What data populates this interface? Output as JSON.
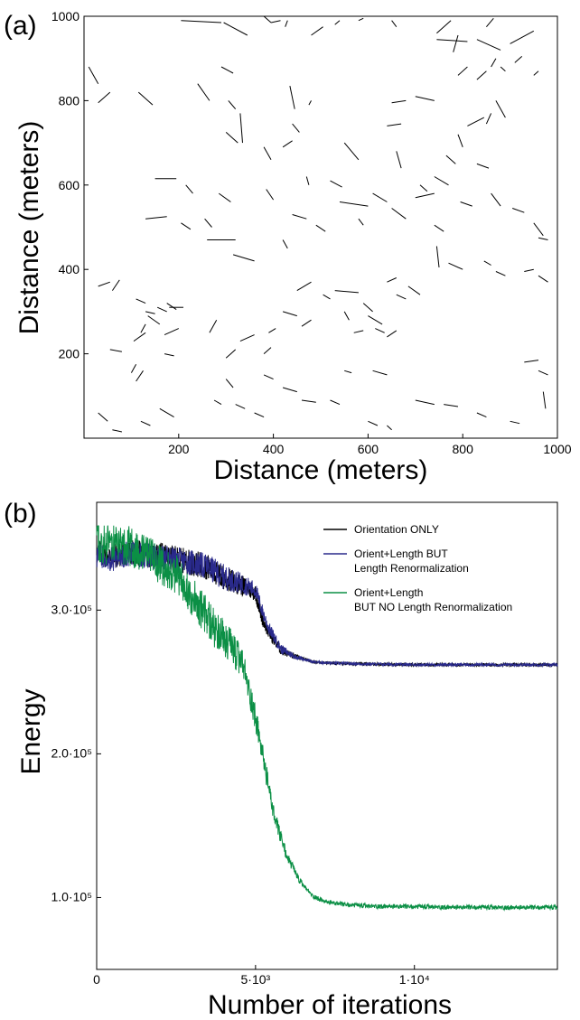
{
  "chart_data": [
    {
      "type": "scatter",
      "mark": "line-segments",
      "panel_label": "(a)",
      "xlabel": "Distance (meters)",
      "ylabel": "Distance (meters)",
      "xlim": [
        0,
        1000
      ],
      "ylim": [
        0,
        1000
      ],
      "x_ticks": [
        "200",
        "400",
        "600",
        "800",
        "1000"
      ],
      "y_ticks": [
        "200",
        "400",
        "600",
        "800",
        "1000"
      ],
      "y_top_label": "1000",
      "grid": false,
      "segments": [
        [
          10,
          880,
          30,
          840
        ],
        [
          30,
          795,
          55,
          820
        ],
        [
          115,
          820,
          145,
          790
        ],
        [
          205,
          990,
          290,
          985
        ],
        [
          295,
          985,
          345,
          955
        ],
        [
          380,
          1000,
          395,
          985
        ],
        [
          425,
          975,
          430,
          990
        ],
        [
          395,
          985,
          415,
          990
        ],
        [
          480,
          955,
          505,
          975
        ],
        [
          530,
          980,
          540,
          990
        ],
        [
          580,
          990,
          590,
          995
        ],
        [
          660,
          975,
          650,
          990
        ],
        [
          745,
          960,
          775,
          990
        ],
        [
          780,
          915,
          790,
          955
        ],
        [
          745,
          945,
          810,
          940
        ],
        [
          830,
          945,
          880,
          920
        ],
        [
          850,
          975,
          865,
          995
        ],
        [
          900,
          935,
          950,
          965
        ],
        [
          925,
          905,
          910,
          890
        ],
        [
          860,
          880,
          870,
          900
        ],
        [
          880,
          880,
          890,
          870
        ],
        [
          790,
          860,
          810,
          880
        ],
        [
          830,
          850,
          850,
          870
        ],
        [
          950,
          860,
          960,
          870
        ],
        [
          290,
          880,
          315,
          865
        ],
        [
          240,
          840,
          265,
          800
        ],
        [
          305,
          800,
          320,
          780
        ],
        [
          435,
          835,
          445,
          780
        ],
        [
          480,
          800,
          475,
          790
        ],
        [
          650,
          795,
          680,
          800
        ],
        [
          700,
          810,
          740,
          800
        ],
        [
          870,
          800,
          890,
          760
        ],
        [
          850,
          745,
          860,
          770
        ],
        [
          810,
          740,
          845,
          760
        ],
        [
          640,
          740,
          670,
          745
        ],
        [
          440,
          745,
          455,
          725
        ],
        [
          300,
          725,
          325,
          700
        ],
        [
          330,
          770,
          335,
          700
        ],
        [
          440,
          705,
          420,
          690
        ],
        [
          380,
          690,
          395,
          660
        ],
        [
          550,
          700,
          580,
          660
        ],
        [
          660,
          680,
          670,
          640
        ],
        [
          790,
          720,
          800,
          690
        ],
        [
          765,
          670,
          785,
          650
        ],
        [
          830,
          650,
          855,
          640
        ],
        [
          740,
          620,
          770,
          600
        ],
        [
          710,
          600,
          725,
          585
        ],
        [
          700,
          570,
          740,
          580
        ],
        [
          610,
          580,
          640,
          560
        ],
        [
          540,
          560,
          600,
          550
        ],
        [
          520,
          610,
          545,
          595
        ],
        [
          470,
          620,
          475,
          600
        ],
        [
          385,
          590,
          400,
          565
        ],
        [
          285,
          580,
          310,
          560
        ],
        [
          215,
          600,
          230,
          580
        ],
        [
          150,
          615,
          195,
          615
        ],
        [
          130,
          520,
          175,
          525
        ],
        [
          205,
          510,
          225,
          495
        ],
        [
          255,
          520,
          270,
          500
        ],
        [
          260,
          470,
          320,
          470
        ],
        [
          315,
          435,
          360,
          420
        ],
        [
          420,
          470,
          430,
          450
        ],
        [
          440,
          530,
          470,
          520
        ],
        [
          490,
          505,
          510,
          490
        ],
        [
          580,
          520,
          590,
          505
        ],
        [
          650,
          545,
          680,
          520
        ],
        [
          740,
          505,
          760,
          490
        ],
        [
          795,
          560,
          820,
          550
        ],
        [
          860,
          580,
          880,
          550
        ],
        [
          905,
          545,
          930,
          535
        ],
        [
          950,
          510,
          970,
          480
        ],
        [
          960,
          475,
          980,
          470
        ],
        [
          745,
          455,
          750,
          405
        ],
        [
          770,
          415,
          800,
          400
        ],
        [
          660,
          380,
          640,
          370
        ],
        [
          660,
          340,
          680,
          330
        ],
        [
          685,
          360,
          710,
          340
        ],
        [
          845,
          420,
          860,
          410
        ],
        [
          870,
          395,
          890,
          385
        ],
        [
          930,
          395,
          950,
          400
        ],
        [
          960,
          385,
          980,
          370
        ],
        [
          30,
          360,
          55,
          370
        ],
        [
          60,
          350,
          75,
          375
        ],
        [
          110,
          330,
          130,
          320
        ],
        [
          130,
          300,
          150,
          295
        ],
        [
          135,
          290,
          160,
          270
        ],
        [
          155,
          310,
          175,
          300
        ],
        [
          175,
          320,
          195,
          305
        ],
        [
          180,
          310,
          210,
          310
        ],
        [
          170,
          245,
          200,
          260
        ],
        [
          120,
          250,
          130,
          270
        ],
        [
          105,
          230,
          130,
          250
        ],
        [
          55,
          210,
          80,
          205
        ],
        [
          100,
          155,
          110,
          175
        ],
        [
          110,
          135,
          125,
          160
        ],
        [
          170,
          200,
          190,
          195
        ],
        [
          265,
          250,
          280,
          280
        ],
        [
          300,
          190,
          320,
          210
        ],
        [
          330,
          230,
          360,
          245
        ],
        [
          380,
          200,
          395,
          215
        ],
        [
          390,
          250,
          405,
          260
        ],
        [
          420,
          300,
          450,
          290
        ],
        [
          450,
          350,
          480,
          370
        ],
        [
          460,
          265,
          480,
          280
        ],
        [
          505,
          340,
          520,
          330
        ],
        [
          530,
          350,
          580,
          345
        ],
        [
          550,
          300,
          560,
          280
        ],
        [
          570,
          250,
          590,
          255
        ],
        [
          590,
          320,
          610,
          300
        ],
        [
          600,
          290,
          630,
          270
        ],
        [
          615,
          260,
          635,
          250
        ],
        [
          640,
          240,
          660,
          255
        ],
        [
          610,
          160,
          640,
          150
        ],
        [
          550,
          160,
          565,
          155
        ],
        [
          420,
          120,
          450,
          110
        ],
        [
          380,
          150,
          400,
          140
        ],
        [
          300,
          140,
          315,
          120
        ],
        [
          275,
          90,
          290,
          80
        ],
        [
          320,
          80,
          340,
          70
        ],
        [
          360,
          60,
          380,
          50
        ],
        [
          600,
          40,
          620,
          30
        ],
        [
          640,
          30,
          650,
          20
        ],
        [
          460,
          90,
          490,
          85
        ],
        [
          520,
          90,
          540,
          80
        ],
        [
          700,
          90,
          740,
          80
        ],
        [
          760,
          80,
          790,
          75
        ],
        [
          830,
          60,
          850,
          50
        ],
        [
          900,
          40,
          920,
          35
        ],
        [
          930,
          180,
          960,
          185
        ],
        [
          960,
          160,
          980,
          150
        ],
        [
          970,
          110,
          975,
          70
        ],
        [
          120,
          40,
          140,
          30
        ],
        [
          60,
          20,
          80,
          15
        ],
        [
          160,
          70,
          190,
          50
        ],
        [
          30,
          60,
          50,
          40
        ]
      ]
    },
    {
      "type": "line",
      "panel_label": "(b)",
      "xlabel": "Number of iterations",
      "ylabel": "Energy",
      "xlim": [
        0,
        14500
      ],
      "ylim": [
        50000,
        375000
      ],
      "x_ticks": [
        {
          "value": 0,
          "label": "0"
        },
        {
          "value": 5000,
          "label": "5·10³"
        },
        {
          "value": 10000,
          "label": "1·10⁴"
        }
      ],
      "y_ticks": [
        {
          "value": 100000,
          "label": "1.0·10⁵"
        },
        {
          "value": 200000,
          "label": "2.0·10⁵"
        },
        {
          "value": 300000,
          "label": "3.0·10⁵"
        }
      ],
      "grid": false,
      "legend_position": "top-right",
      "legend": [
        {
          "lines": [
            "Orientation ONLY"
          ],
          "color": "#000000"
        },
        {
          "lines": [
            "Orient+Length BUT",
            "Length Renormalization"
          ],
          "color": "#2a2a8c"
        },
        {
          "lines": [
            "Orient+Length",
            "BUT NO Length Renormalization"
          ],
          "color": "#0b8f45"
        }
      ],
      "series": [
        {
          "color": "#000000",
          "x": [
            0,
            500,
            1000,
            2000,
            3000,
            3500,
            4000,
            4500,
            5000,
            5200,
            5400,
            5800,
            6200,
            6800,
            7500,
            8500,
            10000,
            12000,
            14500
          ],
          "y": [
            340000,
            337000,
            340000,
            338000,
            333000,
            330000,
            322000,
            318000,
            312000,
            295000,
            285000,
            272000,
            268000,
            264000,
            263000,
            262500,
            262000,
            262000,
            262000
          ],
          "noise": 9000
        },
        {
          "color": "#2a2a8c",
          "x": [
            0,
            500,
            1000,
            2000,
            3000,
            3500,
            4000,
            4500,
            5000,
            5200,
            5400,
            5800,
            6200,
            6800,
            7500,
            8500,
            10000,
            12000,
            14500
          ],
          "y": [
            338000,
            336000,
            339000,
            337000,
            333000,
            330000,
            323000,
            319000,
            314000,
            300000,
            288000,
            273000,
            268000,
            264000,
            263000,
            262500,
            262000,
            262000,
            262000
          ],
          "noise": 9000
        },
        {
          "color": "#0b8f45",
          "x": [
            0,
            1000,
            1800,
            2500,
            3000,
            3500,
            3800,
            4200,
            4600,
            5000,
            5300,
            5600,
            6000,
            6400,
            6800,
            7200,
            7800,
            8500,
            10000,
            12000,
            14500
          ],
          "y": [
            345000,
            345000,
            335000,
            325000,
            310000,
            295000,
            285000,
            275000,
            262000,
            225000,
            190000,
            155000,
            128000,
            111000,
            101000,
            97000,
            95000,
            94000,
            93500,
            93000,
            93000
          ],
          "noise": 14000
        }
      ]
    }
  ]
}
